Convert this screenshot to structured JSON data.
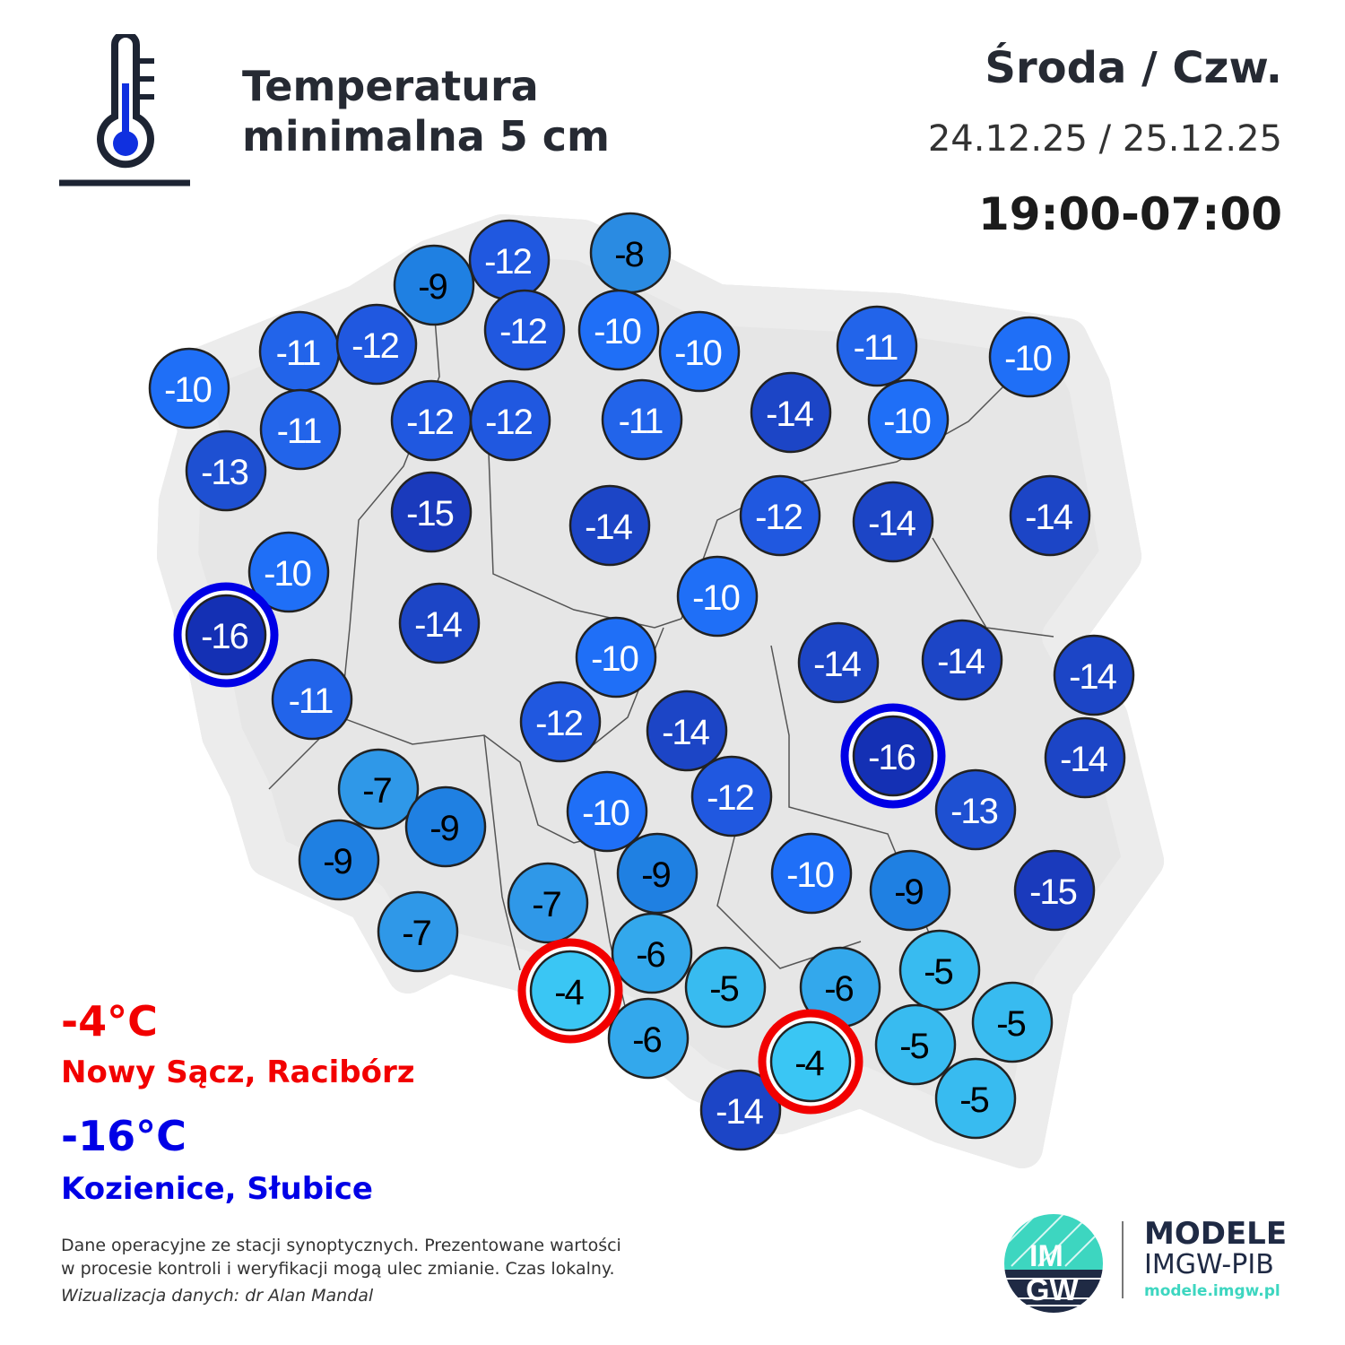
{
  "header": {
    "title_line1": "Temperatura",
    "title_line2": "minimalna 5 cm",
    "day": "Środa / Czw.",
    "dates": "24.12.25 / 25.12.25",
    "hours": "19:00-07:00",
    "icon": "thermometer-icon"
  },
  "extremes": {
    "max_value": "-4°C",
    "max_stations": "Nowy Sącz, Racibórz",
    "max_color": "#f20000",
    "min_value": "-16°C",
    "min_stations": "Kozienice, Słubice",
    "min_color": "#0000e6"
  },
  "footer": {
    "note_line1": "Dane operacyjne ze stacji synoptycznych. Prezentowane wartości",
    "note_line2": "w procesie kontroli i weryfikacji mogą ulec zmianie. Czas lokalny.",
    "credit": "Wizualizacja danych: dr Alan Mandal"
  },
  "brand": {
    "logo_text_top": "IM",
    "logo_text_bottom": "GW",
    "name": "MODELE",
    "org": "IMGW-PIB",
    "url": "modele.imgw.pl"
  },
  "stations": [
    -9,
    -12,
    -8,
    -11,
    -12,
    -12,
    -10,
    -10,
    -11,
    -10,
    -10,
    -11,
    -12,
    -12,
    -11,
    -14,
    -10,
    -13,
    -15,
    -14,
    -12,
    -14,
    -14,
    -10,
    -16,
    -14,
    -10,
    -10,
    -14,
    -14,
    -14,
    -11,
    -12,
    -14,
    -16,
    -14,
    -7,
    -12,
    -10,
    -13,
    -9,
    -9,
    -9,
    -10,
    -9,
    -15,
    -7,
    -7,
    -6,
    -5,
    -4,
    -5,
    -6,
    -5,
    -6,
    -5,
    -4,
    -14,
    -5
  ]
}
